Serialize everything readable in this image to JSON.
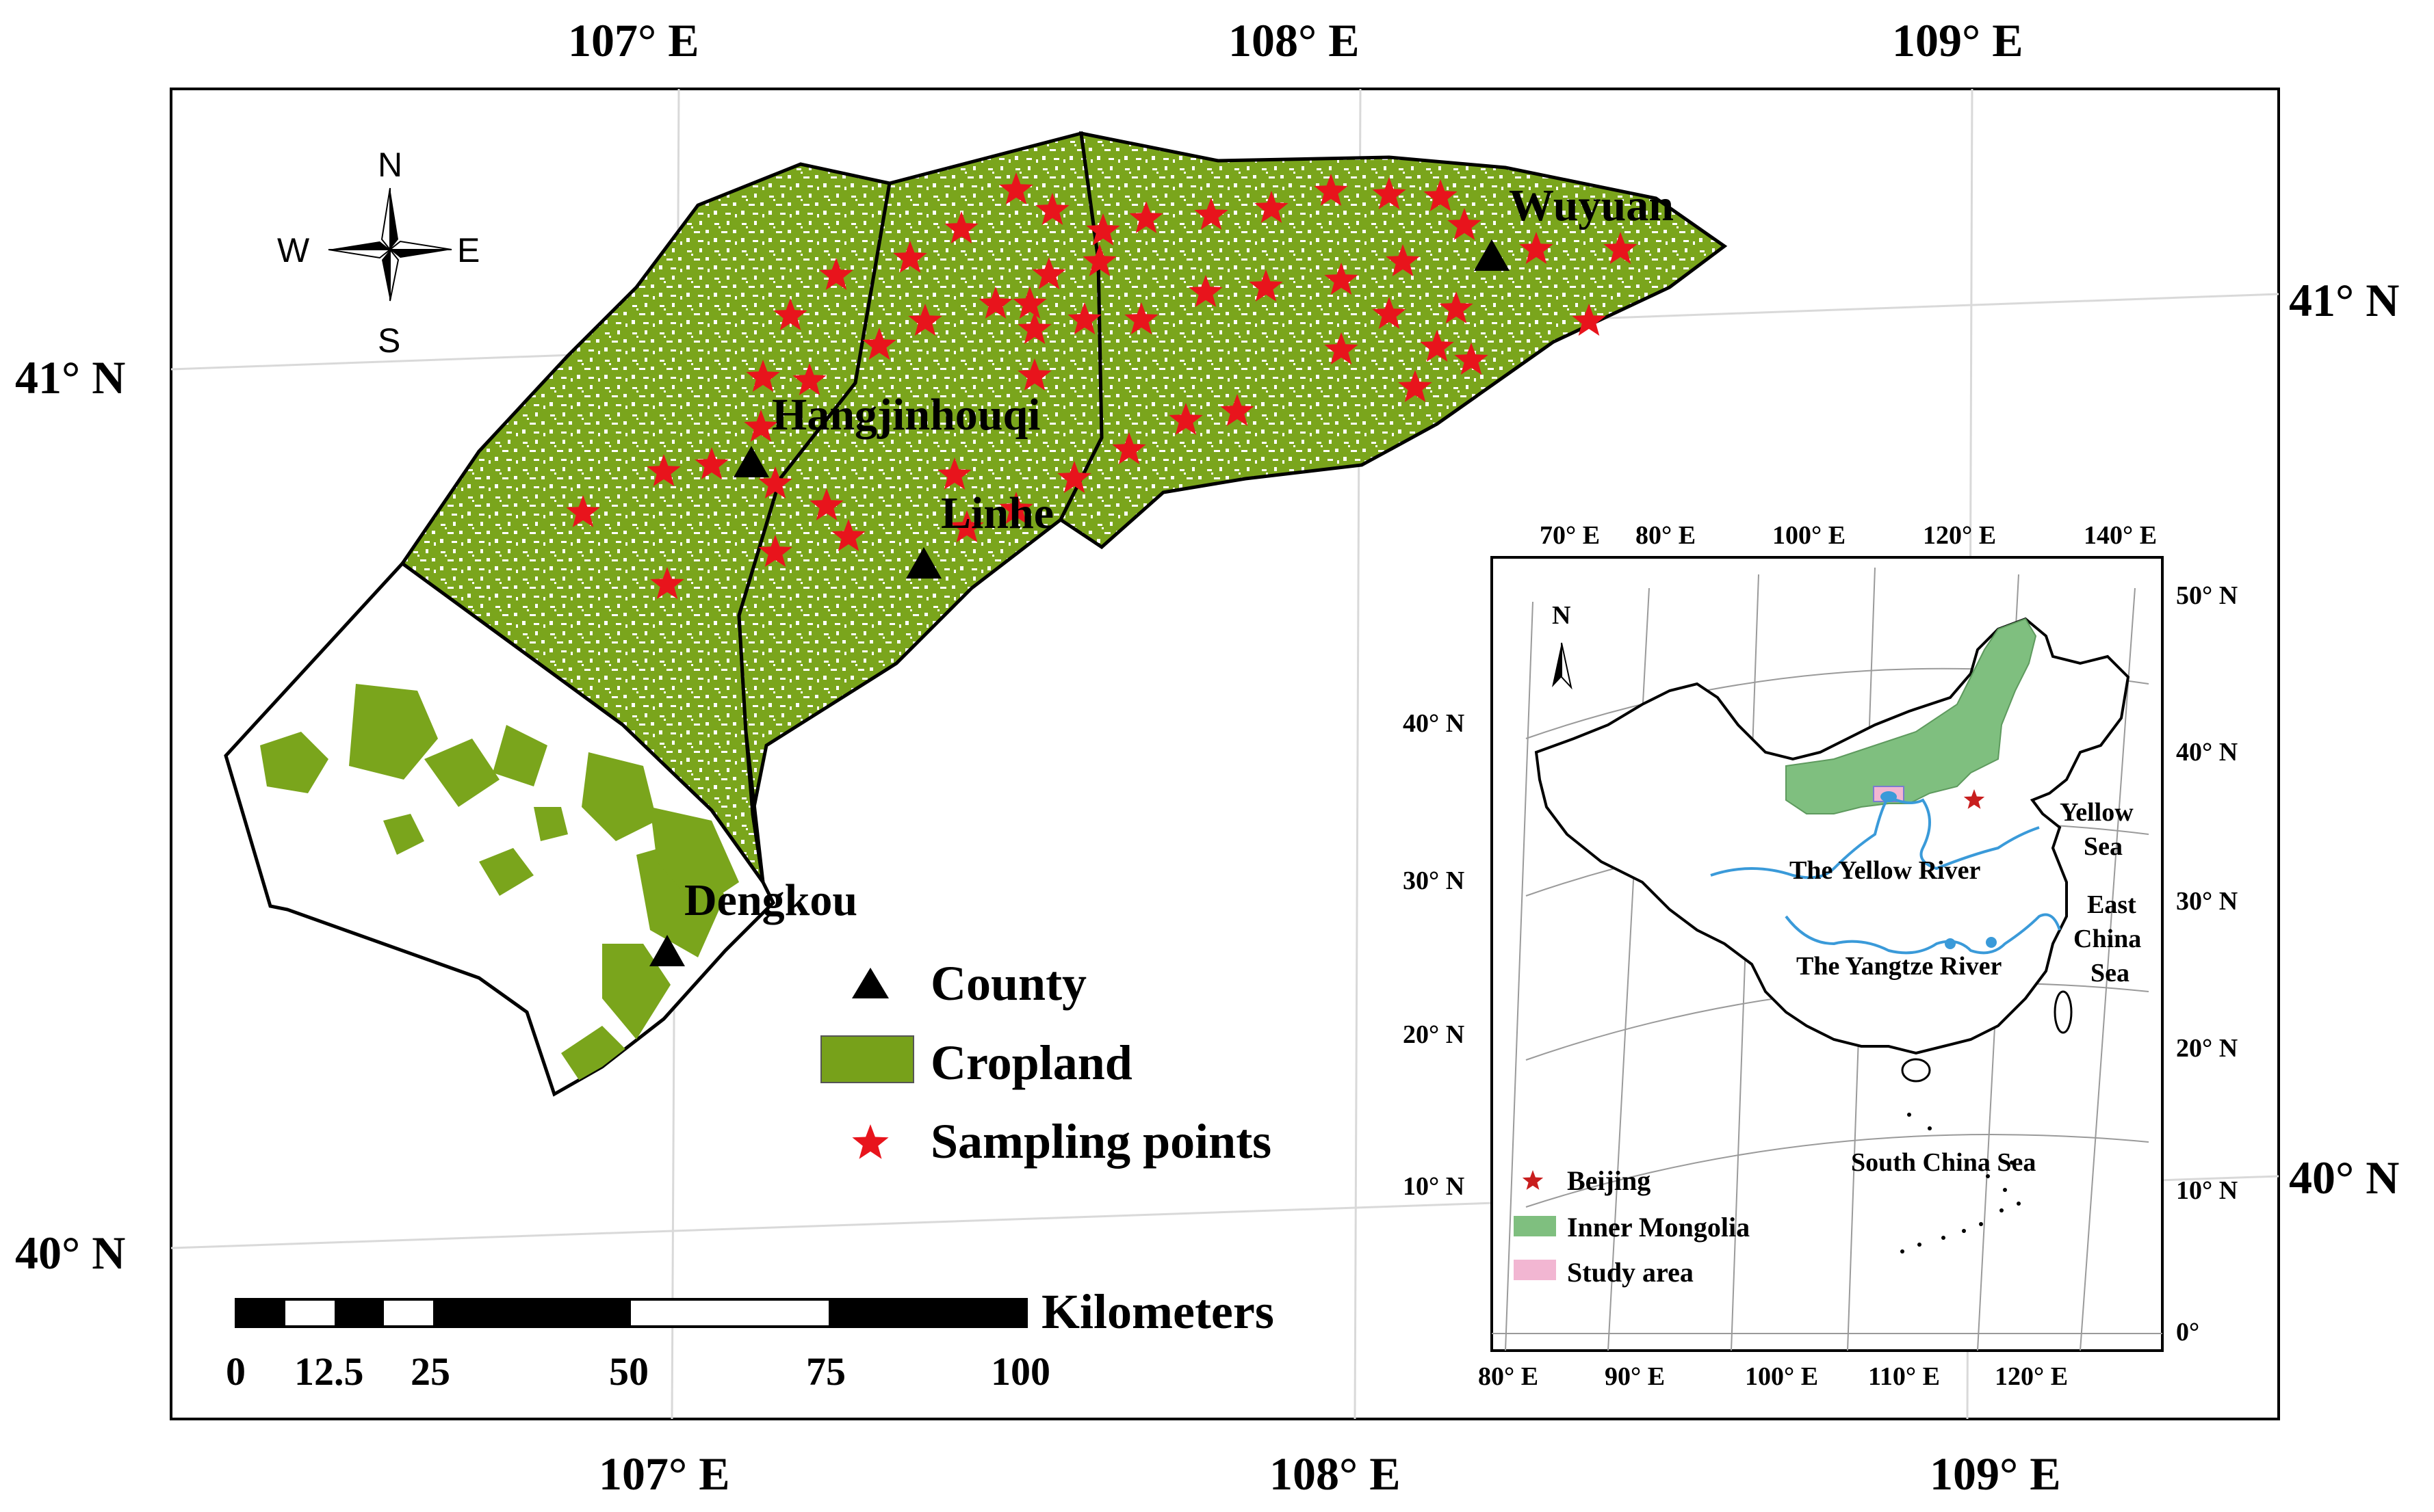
{
  "main_map": {
    "lon_labels_top": [
      "107° E",
      "108° E",
      "109° E"
    ],
    "lon_labels_bottom": [
      "107° E",
      "108° E",
      "109° E"
    ],
    "lat_labels_left": [
      "41° N",
      "40° N"
    ],
    "lat_labels_right": [
      "41° N",
      "40° N"
    ],
    "compass": {
      "n": "N",
      "s": "S",
      "e": "E",
      "w": "W"
    },
    "places": {
      "wuyuan": "Wuyuan",
      "hangjinhouqi": "Hangjinhouqi",
      "linhe": "Linhe",
      "dengkou": "Dengkou"
    },
    "legend": {
      "county": "County",
      "cropland": "Cropland",
      "sampling": "Sampling points"
    },
    "scale_bar": {
      "unit": "Kilometers",
      "ticks": [
        "0",
        "12.5",
        "25",
        "50",
        "75",
        "100"
      ]
    },
    "colors": {
      "cropland": "#77a11a",
      "sampling": "#e8141c",
      "county": "#000000"
    }
  },
  "inset_map": {
    "lon_labels_top": [
      "70° E",
      "80° E",
      "100° E",
      "120° E",
      "140° E"
    ],
    "lon_labels_bottom": [
      "80° E",
      "90° E",
      "100° E",
      "110° E",
      "120° E"
    ],
    "lat_labels_left": [
      "40° N",
      "30° N",
      "20° N",
      "10° N"
    ],
    "lat_labels_right": [
      "50° N",
      "40° N",
      "30° N",
      "20° N",
      "10° N",
      "0°"
    ],
    "north": "N",
    "labels": {
      "yellow_river": "The Yellow River",
      "yangtze_river": "The Yangtze River",
      "yellow_sea_1": "Yellow",
      "yellow_sea_2": "Sea",
      "east_china_sea_1": "East",
      "east_china_sea_2": "China",
      "east_china_sea_3": "Sea",
      "south_china_sea": "South China Sea"
    },
    "legend": {
      "beijing": "Beijing",
      "inner_mongolia": "Inner Mongolia",
      "study_area": "Study area"
    },
    "colors": {
      "inner_mongolia": "#7fbf7f",
      "study_area": "#f2b6d2",
      "river": "#3a9ad9",
      "beijing": "#c81e1e"
    }
  }
}
